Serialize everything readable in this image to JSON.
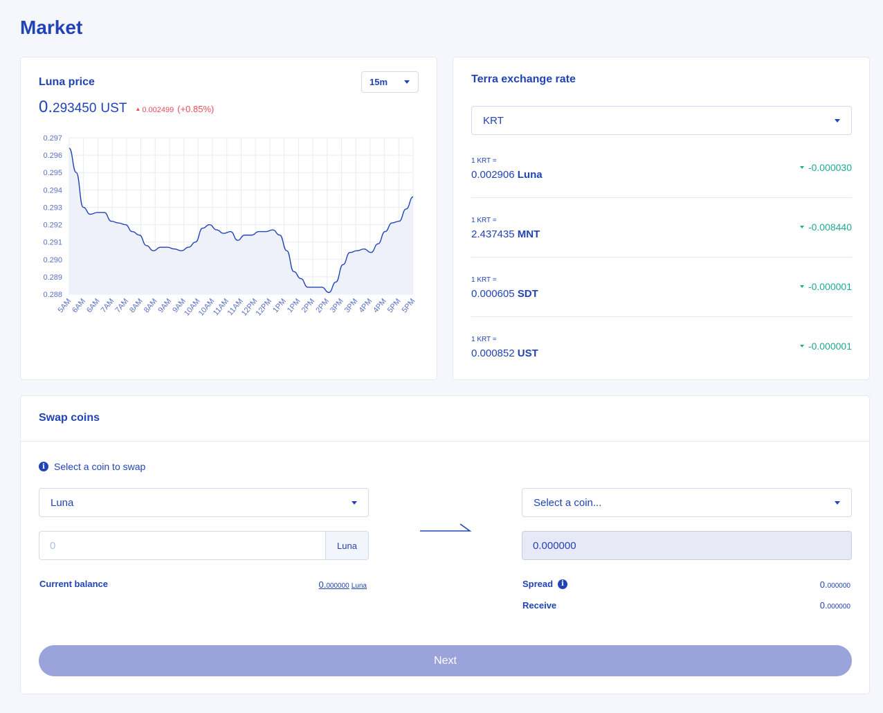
{
  "page": {
    "title": "Market"
  },
  "price_card": {
    "title": "Luna price",
    "interval": "15m",
    "price_int": "0.",
    "price_dec": "293450",
    "unit": "UST",
    "change_small": "0.002499",
    "change_pct": "(+0.85%)",
    "change_color": "#e64c57"
  },
  "chart_data": {
    "type": "area",
    "ylim": [
      0.288,
      0.297
    ],
    "y_ticks": [
      "0.297",
      "0.296",
      "0.295",
      "0.294",
      "0.293",
      "0.292",
      "0.291",
      "0.290",
      "0.289",
      "0.288"
    ],
    "x_labels": [
      "5AM",
      "6AM",
      "6AM",
      "7AM",
      "7AM",
      "8AM",
      "8AM",
      "9AM",
      "9AM",
      "10AM",
      "10AM",
      "11AM",
      "11AM",
      "12PM",
      "12PM",
      "1PM",
      "1PM",
      "2PM",
      "2PM",
      "3PM",
      "3PM",
      "4PM",
      "4PM",
      "5PM",
      "5PM"
    ],
    "values": [
      0.2964,
      0.295,
      0.293,
      0.2926,
      0.2927,
      0.2927,
      0.2922,
      0.2921,
      0.292,
      0.2916,
      0.2914,
      0.2908,
      0.2905,
      0.2907,
      0.2907,
      0.2906,
      0.2905,
      0.2907,
      0.291,
      0.2918,
      0.292,
      0.2917,
      0.2915,
      0.2916,
      0.2911,
      0.2914,
      0.2914,
      0.2916,
      0.2916,
      0.2917,
      0.2914,
      0.2905,
      0.2893,
      0.2889,
      0.2884,
      0.2884,
      0.2884,
      0.2881,
      0.2887,
      0.2897,
      0.2904,
      0.2905,
      0.2906,
      0.2904,
      0.2909,
      0.2916,
      0.2921,
      0.2922,
      0.2929,
      0.2936
    ],
    "line_color": "#2043b5",
    "fill_color": "#eef1fa",
    "grid": true
  },
  "rate_card": {
    "title": "Terra exchange rate",
    "selected": "KRT",
    "rows": [
      {
        "label": "1 KRT =",
        "value": "0.002906",
        "symbol": "Luna",
        "change": "-0.000030"
      },
      {
        "label": "1 KRT =",
        "value": "2.437435",
        "symbol": "MNT",
        "change": "-0.008440"
      },
      {
        "label": "1 KRT =",
        "value": "0.000605",
        "symbol": "SDT",
        "change": "-0.000001"
      },
      {
        "label": "1 KRT =",
        "value": "0.000852",
        "symbol": "UST",
        "change": "-0.000001"
      }
    ],
    "change_color": "#1daa8e"
  },
  "swap_card": {
    "title": "Swap coins",
    "hint": "Select a coin to swap",
    "from_coin": "Luna",
    "to_coin_placeholder": "Select a coin...",
    "amount_placeholder": "0",
    "amount_unit": "Luna",
    "output_value": "0.000000",
    "balance_label": "Current balance",
    "balance_int": "0.",
    "balance_dec": "000000",
    "balance_unit": "Luna",
    "spread_label": "Spread",
    "spread_int": "0.",
    "spread_dec": "000000",
    "receive_label": "Receive",
    "receive_int": "0.",
    "receive_dec": "000000",
    "next_label": "Next",
    "next_color": "#9aa3da"
  }
}
